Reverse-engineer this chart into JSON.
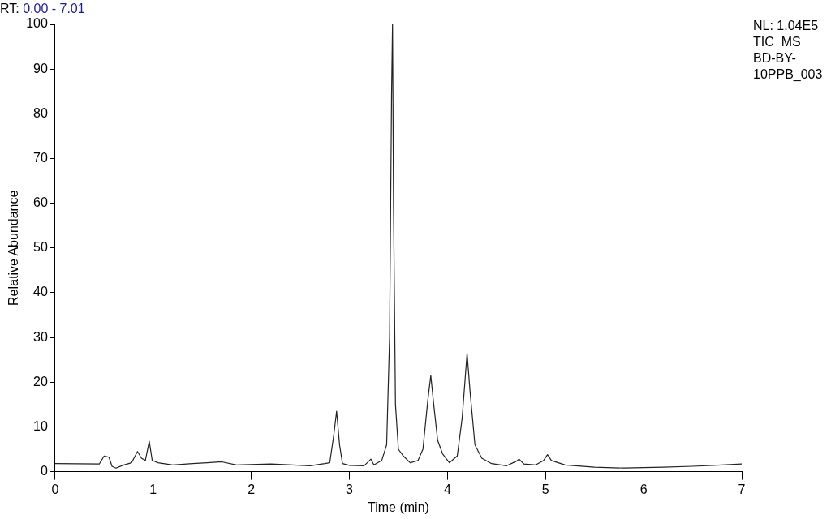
{
  "chart_data": {
    "type": "line",
    "title": "RT: 0.00 - 7.01",
    "xlabel": "Time (min)",
    "ylabel": "Relative Abundance",
    "annotations": [
      "NL: 1.04E5",
      "TIC  MS BD-BY-10PPB_003"
    ],
    "xlim": [
      0,
      7
    ],
    "xticks": [
      0,
      1,
      2,
      3,
      4,
      5,
      6,
      7
    ],
    "ylim": [
      0,
      100
    ],
    "yticks": [
      0,
      10,
      20,
      30,
      40,
      50,
      60,
      70,
      80,
      90,
      100
    ],
    "grid": false,
    "legend": false,
    "marker": "none",
    "line_style": "solid",
    "series": [
      {
        "color": "#222222",
        "x": [
          0,
          0.45,
          0.5,
          0.55,
          0.58,
          0.62,
          0.7,
          0.78,
          0.84,
          0.88,
          0.92,
          0.96,
          0.99,
          1.05,
          1.2,
          1.4,
          1.55,
          1.7,
          1.85,
          2.2,
          2.6,
          2.75,
          2.8,
          2.84,
          2.87,
          2.9,
          2.93,
          3.0,
          3.15,
          3.22,
          3.25,
          3.33,
          3.38,
          3.41,
          3.43,
          3.44,
          3.45,
          3.47,
          3.5,
          3.55,
          3.62,
          3.7,
          3.75,
          3.8,
          3.83,
          3.86,
          3.9,
          3.95,
          4.02,
          4.1,
          4.15,
          4.2,
          4.23,
          4.28,
          4.35,
          4.45,
          4.6,
          4.7,
          4.73,
          4.78,
          4.9,
          4.98,
          5.02,
          5.06,
          5.2,
          5.5,
          5.8,
          6.2,
          6.5,
          6.8,
          7.0
        ],
        "values": [
          1.8,
          1.7,
          3.5,
          3.2,
          1.2,
          0.8,
          1.5,
          2.0,
          4.5,
          3.0,
          2.5,
          6.8,
          2.5,
          2.0,
          1.5,
          1.8,
          2.0,
          2.2,
          1.5,
          1.7,
          1.3,
          1.8,
          2.0,
          8,
          13.5,
          6,
          1.8,
          1.4,
          1.3,
          2.8,
          1.5,
          2.5,
          6,
          30,
          84,
          100,
          60,
          15,
          5,
          3.5,
          2.0,
          2.5,
          5,
          16,
          21.5,
          15,
          7,
          4,
          2.0,
          3.5,
          12,
          26.5,
          18,
          6,
          3,
          1.8,
          1.3,
          2.3,
          2.8,
          1.7,
          1.5,
          2.5,
          3.8,
          2.5,
          1.5,
          1.0,
          0.8,
          1.0,
          1.2,
          1.5,
          1.7
        ]
      }
    ]
  }
}
